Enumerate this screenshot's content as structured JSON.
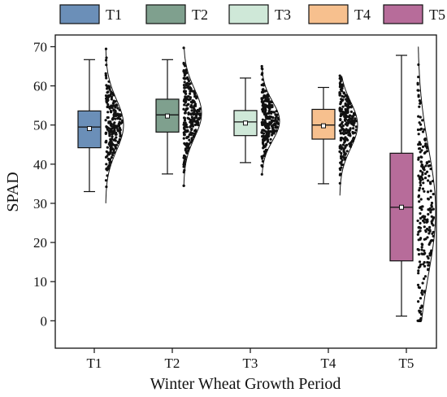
{
  "chart_data": {
    "type": "box",
    "title": "",
    "xlabel": "Winter Wheat Growth Period",
    "ylabel": "SPAD",
    "ylim": [
      -7,
      73
    ],
    "yticks": [
      0,
      10,
      20,
      30,
      40,
      50,
      60,
      70
    ],
    "grid": false,
    "legend_position": "top",
    "categories": [
      "T1",
      "T2",
      "T3",
      "T4",
      "T5"
    ],
    "series": [
      {
        "name": "T1",
        "color": "#6B8FB8",
        "min": 33,
        "q1": 44.2,
        "median": 49.5,
        "q3": 53.6,
        "max": 66.7,
        "mean": 49.1,
        "dist_mean": 50,
        "dist_sd": 6.5,
        "n": 240
      },
      {
        "name": "T2",
        "color": "#7FA08E",
        "min": 37.5,
        "q1": 48.2,
        "median": 52.6,
        "q3": 56.6,
        "max": 66.7,
        "mean": 52.3,
        "dist_mean": 53,
        "dist_sd": 6.2,
        "n": 240
      },
      {
        "name": "T3",
        "color": "#CFE8D8",
        "min": 40.4,
        "q1": 47.3,
        "median": 50.8,
        "q3": 53.7,
        "max": 62,
        "mean": 50.5,
        "dist_mean": 51,
        "dist_sd": 5,
        "n": 240
      },
      {
        "name": "T4",
        "color": "#F7C08E",
        "min": 35,
        "q1": 46.4,
        "median": 50,
        "q3": 54,
        "max": 59.6,
        "mean": 49.8,
        "dist_mean": 50,
        "dist_sd": 6,
        "n": 240
      },
      {
        "name": "T5",
        "color": "#B76C9A",
        "min": 1.2,
        "q1": 15.3,
        "median": 29,
        "q3": 42.8,
        "max": 67.8,
        "mean": 29,
        "dist_mean": 28,
        "dist_sd": 16,
        "n": 240
      }
    ]
  }
}
